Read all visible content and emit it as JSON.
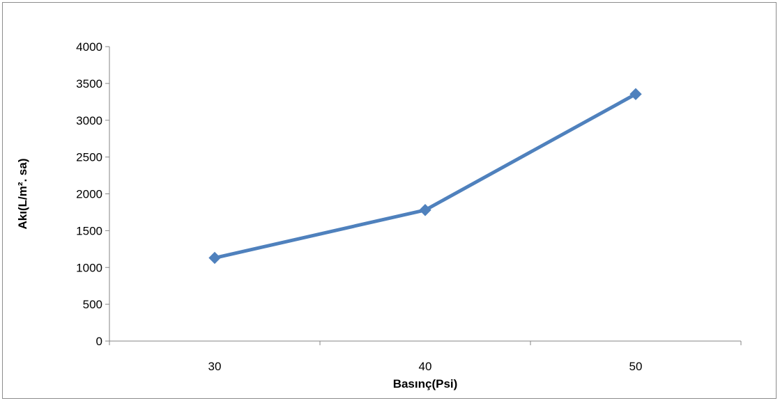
{
  "chart_data": {
    "type": "line",
    "title": "",
    "xlabel": "Basınç(Psi)",
    "ylabel": "Akı(L/m². sa)",
    "categories": [
      "30",
      "40",
      "50"
    ],
    "series": [
      {
        "values": [
          1130,
          1780,
          3355
        ],
        "color": "#4f81bd",
        "marker": "diamond"
      }
    ],
    "ylim": [
      0,
      4000
    ],
    "yticks": [
      0,
      500,
      1000,
      1500,
      2000,
      2500,
      3000,
      3500,
      4000
    ],
    "grid": false,
    "legend": "none"
  }
}
